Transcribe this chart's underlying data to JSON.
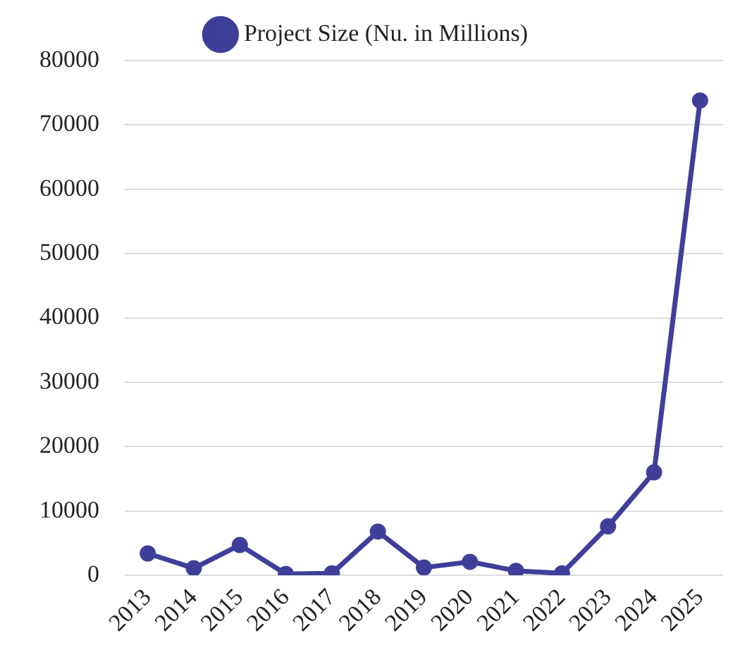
{
  "chart_data": {
    "type": "line",
    "categories": [
      "2013",
      "2014",
      "2015",
      "2016",
      "2017",
      "2018",
      "2019",
      "2020",
      "2021",
      "2022",
      "2023",
      "2024",
      "2025"
    ],
    "series": [
      {
        "name": "Project Size (Nu. in Millions)",
        "color": "#3f3f9a",
        "values": [
          3400,
          1100,
          4700,
          200,
          300,
          6800,
          1200,
          2100,
          700,
          300,
          7600,
          16000,
          73800
        ]
      }
    ],
    "ylim": [
      0,
      80000
    ],
    "yticks": [
      0,
      10000,
      20000,
      30000,
      40000,
      50000,
      60000,
      70000,
      80000
    ],
    "grid": "y",
    "legend": "top",
    "marker": "circle",
    "line_style": "solid"
  }
}
